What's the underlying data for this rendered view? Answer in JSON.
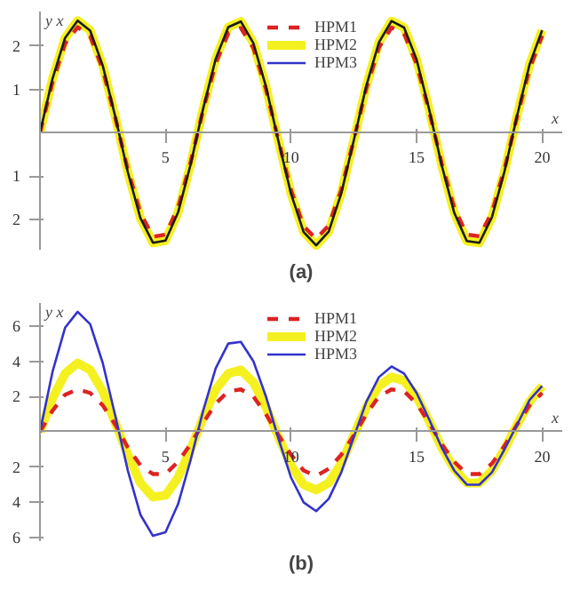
{
  "chart_data": [
    {
      "type": "line",
      "title": "(a)",
      "xlabel": "x",
      "ylabel": "y x",
      "x": [
        0,
        0.5,
        1,
        1.5,
        2,
        2.5,
        3,
        3.5,
        4,
        4.5,
        5,
        5.5,
        6,
        6.5,
        7,
        7.5,
        8,
        8.5,
        9,
        9.5,
        10,
        10.5,
        11,
        11.5,
        12,
        12.5,
        13,
        13.5,
        14,
        14.5,
        15,
        15.5,
        16,
        16.5,
        17,
        17.5,
        18,
        18.5,
        19,
        19.5,
        20
      ],
      "xlim": [
        0,
        20.8
      ],
      "ylim": [
        -2.7,
        2.8
      ],
      "xticks": [
        5,
        10,
        15,
        20
      ],
      "yticks": [
        {
          "value": -2,
          "label": "2"
        },
        {
          "value": -1,
          "label": "1"
        },
        1,
        2
      ],
      "grid": false,
      "legend": "top left",
      "series": [
        {
          "name": "HPM1",
          "color": "#dd2222",
          "line_style": "dashed",
          "values": [
            0,
            1.17,
            2.06,
            2.44,
            2.23,
            1.47,
            0.35,
            -0.86,
            -1.85,
            -2.4,
            -2.35,
            -1.73,
            -0.68,
            0.53,
            1.61,
            2.3,
            2.42,
            1.96,
            1.01,
            -0.18,
            -1.33,
            -2.16,
            -2.45,
            -2.14,
            -1.32,
            -0.16,
            1.03,
            1.97,
            2.43,
            2.29,
            1.59,
            0.5,
            -0.71,
            -1.74,
            -2.35,
            -2.39,
            -1.84,
            -0.84,
            0.37,
            1.48,
            2.24
          ]
        },
        {
          "name": "HPM2",
          "color": "#f5f020",
          "line_style": "solid",
          "values": [
            0,
            1.25,
            2.19,
            2.59,
            2.36,
            1.55,
            0.37,
            -0.91,
            -1.97,
            -2.54,
            -2.49,
            -1.84,
            -0.73,
            0.56,
            1.71,
            2.44,
            2.57,
            2.07,
            1.07,
            -0.2,
            -1.41,
            -2.29,
            -2.6,
            -2.28,
            -1.4,
            -0.17,
            1.09,
            2.09,
            2.58,
            2.43,
            1.69,
            0.54,
            -0.75,
            -1.85,
            -2.5,
            -2.54,
            -1.95,
            -0.89,
            0.39,
            1.58,
            2.37
          ]
        },
        {
          "name": "HPM3",
          "color": "#3333cc",
          "line_style": "solid",
          "values": [
            null,
            null,
            null,
            null,
            null,
            null,
            null,
            null,
            null,
            null,
            null,
            null,
            null,
            null,
            null,
            null,
            null,
            null,
            null,
            null,
            null,
            null,
            null,
            null,
            null,
            null,
            null,
            null,
            null,
            null,
            null,
            null,
            null,
            null,
            null,
            null,
            null,
            null,
            null,
            null,
            null
          ]
        },
        {
          "color": "#1a1a1a",
          "line_style": "solid",
          "values": [
            0,
            1.25,
            2.19,
            2.59,
            2.36,
            1.55,
            0.37,
            -0.91,
            -1.97,
            -2.54,
            -2.49,
            -1.84,
            -0.73,
            0.56,
            1.71,
            2.44,
            2.57,
            2.07,
            1.07,
            -0.2,
            -1.41,
            -2.29,
            -2.6,
            -2.28,
            -1.4,
            -0.17,
            1.09,
            2.09,
            2.58,
            2.43,
            1.69,
            0.54,
            -0.75,
            -1.85,
            -2.5,
            -2.54,
            -1.95,
            -0.89,
            0.39,
            1.58,
            2.37
          ]
        }
      ]
    },
    {
      "type": "line",
      "title": "(b)",
      "xlabel": "x",
      "ylabel": "y x",
      "x": [
        0,
        0.5,
        1,
        1.5,
        2,
        2.5,
        3,
        3.5,
        4,
        4.5,
        5,
        5.5,
        6,
        6.5,
        7,
        7.5,
        8,
        8.5,
        9,
        9.5,
        10,
        10.5,
        11,
        11.5,
        12,
        12.5,
        13,
        13.5,
        14,
        14.5,
        15,
        15.5,
        16,
        16.5,
        17,
        17.5,
        18,
        18.5,
        19,
        19.5,
        20
      ],
      "xlim": [
        0,
        20.8
      ],
      "ylim": [
        -6.2,
        7.3
      ],
      "xticks": [
        5,
        10,
        15,
        20
      ],
      "yticks": [
        {
          "value": -6,
          "label": "6"
        },
        {
          "value": -4,
          "label": "4"
        },
        {
          "value": -2,
          "label": "2"
        },
        2,
        4,
        6
      ],
      "grid": false,
      "legend": "top left",
      "series": [
        {
          "name": "HPM1",
          "color": "#dd2222",
          "line_style": "dashed",
          "values": [
            0,
            1.2,
            2.1,
            2.4,
            2.2,
            1.5,
            0.4,
            -0.9,
            -1.9,
            -2.4,
            -2.4,
            -1.7,
            -0.7,
            0.5,
            1.6,
            2.3,
            2.4,
            2,
            1,
            -0.2,
            -1.3,
            -2.2,
            -2.5,
            -2.1,
            -1.3,
            -0.2,
            1,
            2,
            2.4,
            2.3,
            1.6,
            0.5,
            -0.7,
            -1.7,
            -2.4,
            -2.4,
            -1.8,
            -0.8,
            0.4,
            1.5,
            2.2
          ]
        },
        {
          "name": "HPM2",
          "color": "#f5f020",
          "line_style": "solid",
          "values": [
            0,
            1.9,
            3.3,
            3.9,
            3.5,
            2.3,
            0.5,
            -1.3,
            -2.9,
            -3.7,
            -3.6,
            -2.6,
            -1,
            0.8,
            2.4,
            3.3,
            3.5,
            2.8,
            1.4,
            -0.3,
            -1.9,
            -3,
            -3.3,
            -2.9,
            -1.8,
            -0.2,
            1.4,
            2.6,
            3.1,
            2.9,
            2,
            0.6,
            -0.9,
            -2.1,
            -2.9,
            -2.9,
            -2.2,
            -1,
            0.4,
            1.7,
            2.6
          ]
        },
        {
          "name": "HPM3",
          "color": "#3333cc",
          "line_style": "solid",
          "values": [
            0,
            3.4,
            5.9,
            6.8,
            6.1,
            3.9,
            0.9,
            -2.2,
            -4.7,
            -5.9,
            -5.7,
            -4.1,
            -1.6,
            1.2,
            3.6,
            5,
            5.1,
            4,
            2,
            -0.4,
            -2.6,
            -4,
            -4.5,
            -3.8,
            -2.3,
            -0.3,
            1.7,
            3.1,
            3.7,
            3.3,
            2.2,
            0.7,
            -0.9,
            -2.2,
            -3,
            -3,
            -2.3,
            -1,
            0.4,
            1.8,
            2.6
          ]
        }
      ]
    }
  ]
}
